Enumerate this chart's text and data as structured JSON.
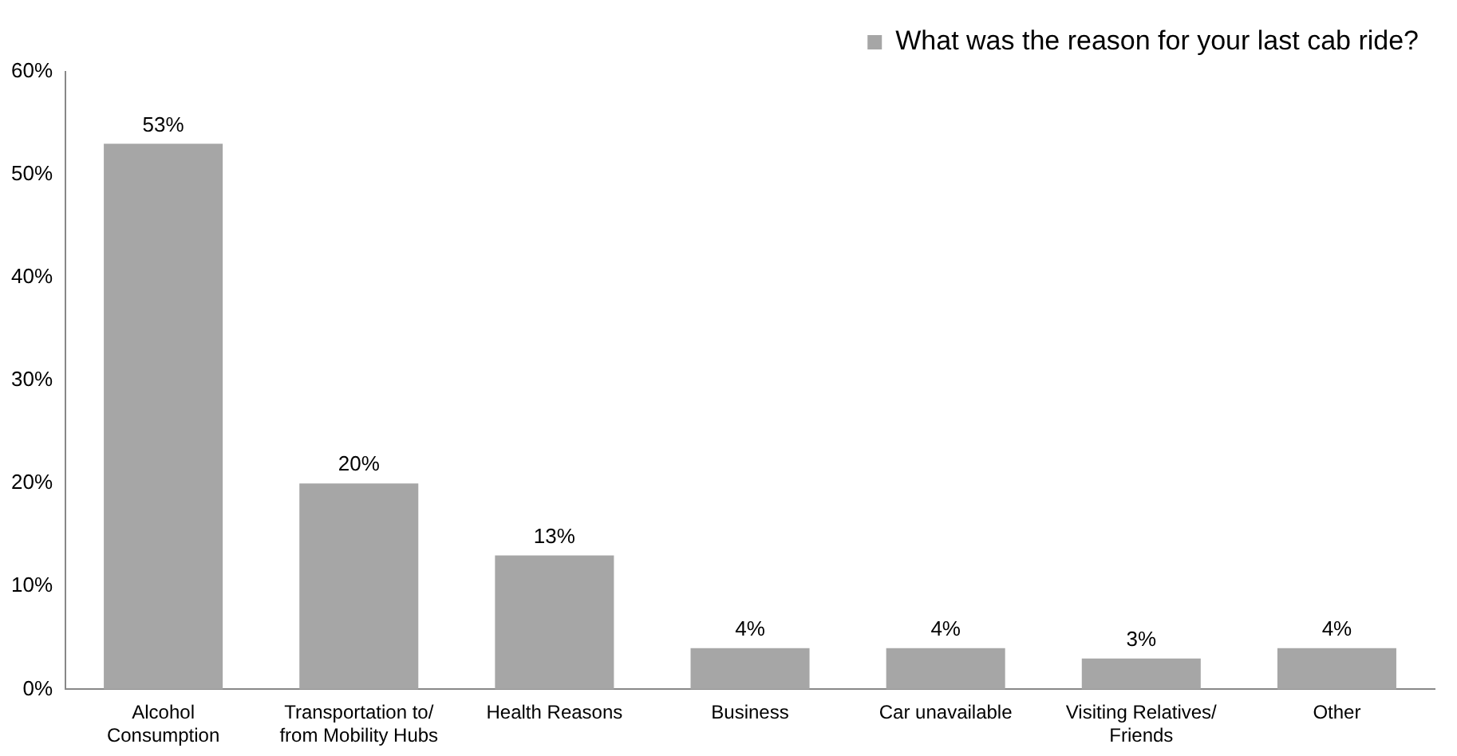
{
  "chart_data": {
    "type": "bar",
    "categories": [
      "Alcohol Consumption",
      "Transportation to/ from Mobility Hubs",
      "Health Reasons",
      "Business",
      "Car unavailable",
      "Visiting Relatives/ Friends",
      "Other"
    ],
    "series": [
      {
        "name": "What was the reason for your last cab ride?",
        "color": "#a6a6a6",
        "values": [
          53,
          20,
          13,
          4,
          4,
          3,
          4
        ],
        "value_labels": [
          "53%",
          "20%",
          "13%",
          "4%",
          "4%",
          "3%",
          "4%"
        ]
      }
    ],
    "ylim": [
      0,
      60
    ],
    "yticks": [
      {
        "value": 0,
        "label": "0%"
      },
      {
        "value": 10,
        "label": "10%"
      },
      {
        "value": 20,
        "label": "20%"
      },
      {
        "value": 30,
        "label": "30%"
      },
      {
        "value": 40,
        "label": "40%"
      },
      {
        "value": 50,
        "label": "50%"
      },
      {
        "value": 60,
        "label": "60%"
      }
    ],
    "grid": false,
    "legend": "top right"
  }
}
